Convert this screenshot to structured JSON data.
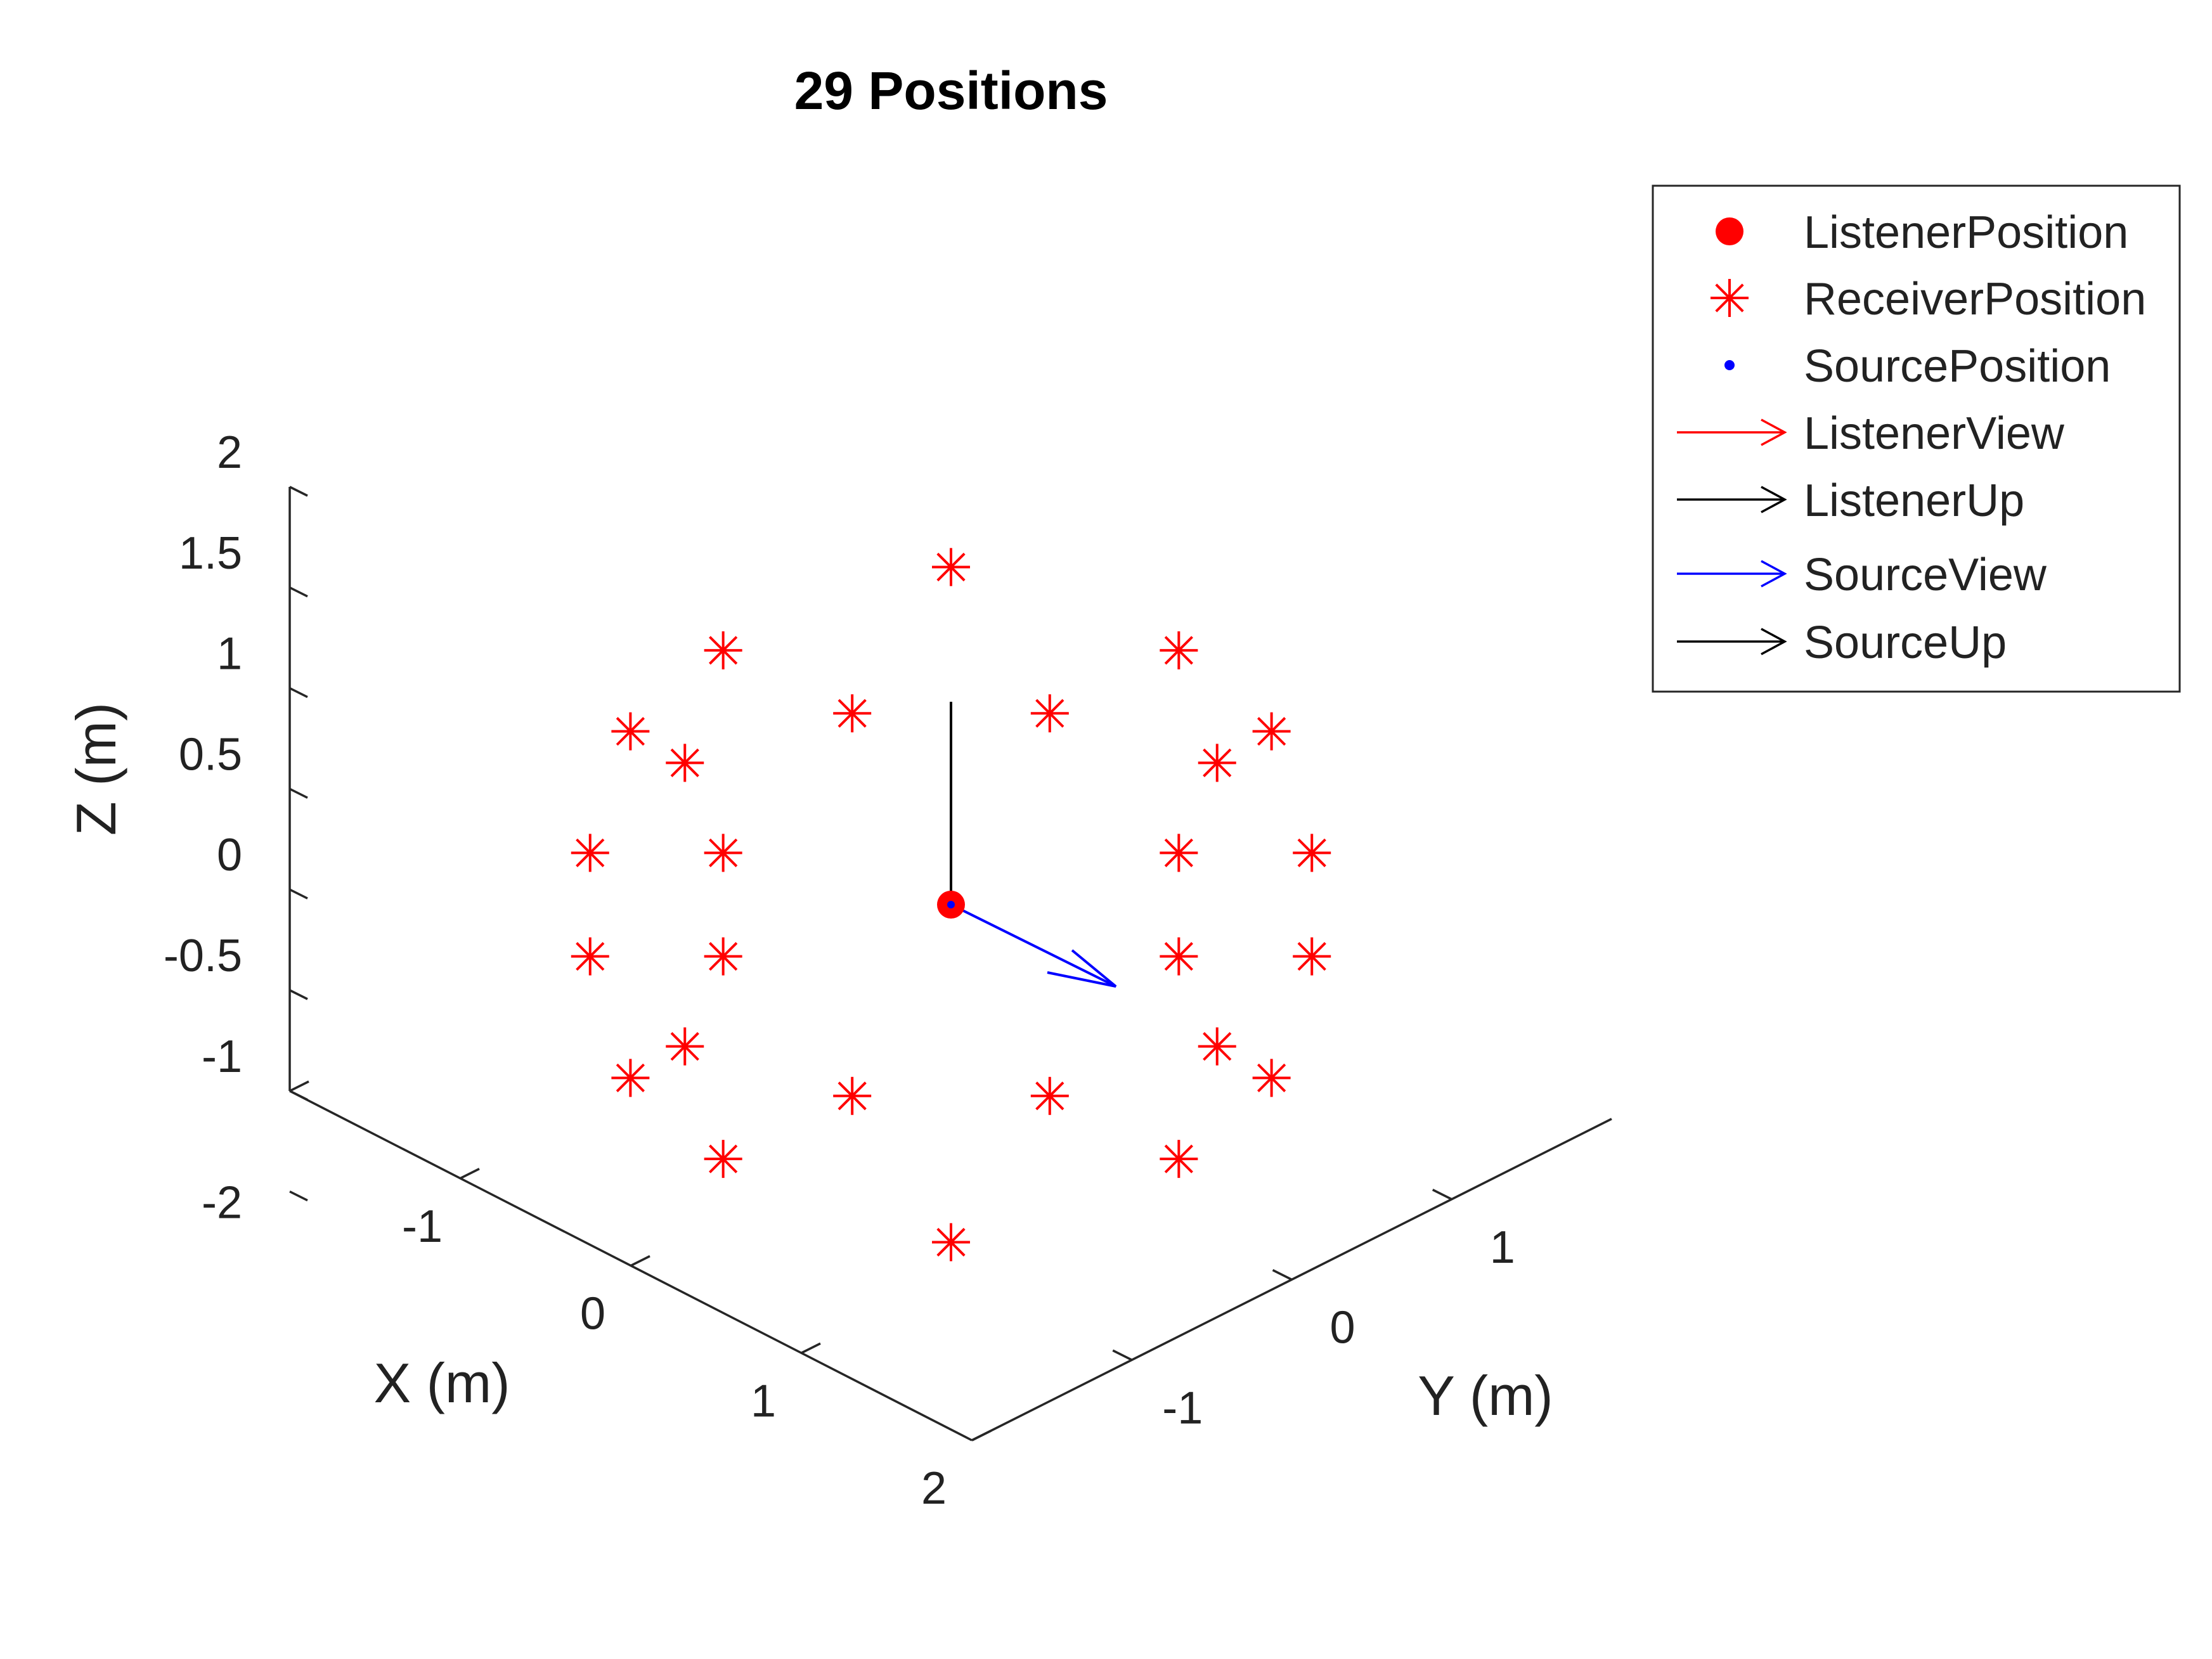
{
  "chart_data": {
    "type": "scatter3d",
    "title": "29 Positions",
    "xlabel": "X (m)",
    "ylabel": "Y (m)",
    "zlabel": "Z (m)",
    "xlim": [
      -2,
      2
    ],
    "ylim": [
      -2,
      2
    ],
    "zlim": [
      -1,
      2
    ],
    "x_tick_labels": [
      "-1",
      "0",
      "1",
      "2"
    ],
    "y_tick_labels": [
      "-1",
      "0",
      "1"
    ],
    "z_tick_labels": [
      "2",
      "1.5",
      "1",
      "0.5",
      "0",
      "-0.5",
      "-1",
      "-2"
    ],
    "grid": false,
    "legend_placement": "outside-top-right",
    "legend": [
      {
        "label": "ListenerPosition",
        "marker": "filled-dot",
        "color": "#ff0000"
      },
      {
        "label": "ReceiverPosition",
        "marker": "asterisk",
        "color": "#ff0000"
      },
      {
        "label": "SourcePosition",
        "marker": "dot",
        "color": "#0000ff"
      },
      {
        "label": "ListenerView",
        "marker": "arrow",
        "color": "#ff0000"
      },
      {
        "label": "ListenerUp",
        "marker": "arrow",
        "color": "#000000"
      },
      {
        "label": "SourceView",
        "marker": "arrow",
        "color": "#0000ff"
      },
      {
        "label": "SourceUp",
        "marker": "arrow",
        "color": "#000000"
      }
    ],
    "listener_position": [
      0,
      0,
      0
    ],
    "source_position": [
      0,
      0,
      0
    ],
    "receiver_positions": [
      {
        "y": 0.0,
        "z": 1.5
      },
      {
        "y": -1.13,
        "z": 1.13
      },
      {
        "y": 1.13,
        "z": 1.13
      },
      {
        "y": -0.49,
        "z": 0.85
      },
      {
        "y": 0.49,
        "z": 0.85
      },
      {
        "y": -1.59,
        "z": 0.77
      },
      {
        "y": 1.59,
        "z": 0.77
      },
      {
        "y": -1.32,
        "z": 0.63
      },
      {
        "y": 1.32,
        "z": 0.63
      },
      {
        "y": -1.79,
        "z": 0.23
      },
      {
        "y": 1.79,
        "z": 0.23
      },
      {
        "y": -1.13,
        "z": 0.23
      },
      {
        "y": 1.13,
        "z": 0.23
      },
      {
        "y": -1.79,
        "z": -0.23
      },
      {
        "y": 1.79,
        "z": -0.23
      },
      {
        "y": -1.13,
        "z": -0.23
      },
      {
        "y": 1.13,
        "z": -0.23
      },
      {
        "y": -1.32,
        "z": -0.63
      },
      {
        "y": 1.32,
        "z": -0.63
      },
      {
        "y": -1.59,
        "z": -0.77
      },
      {
        "y": 1.59,
        "z": -0.77
      },
      {
        "y": -0.49,
        "z": -0.85
      },
      {
        "y": 0.49,
        "z": -0.85
      },
      {
        "y": -1.13,
        "z": -1.13
      },
      {
        "y": 1.13,
        "z": -1.13
      },
      {
        "y": 0.0,
        "z": -1.5
      }
    ],
    "listener_up_vector": [
      0,
      0,
      1
    ],
    "source_view_vector": [
      0.6,
      0.6,
      -0.4
    ]
  }
}
